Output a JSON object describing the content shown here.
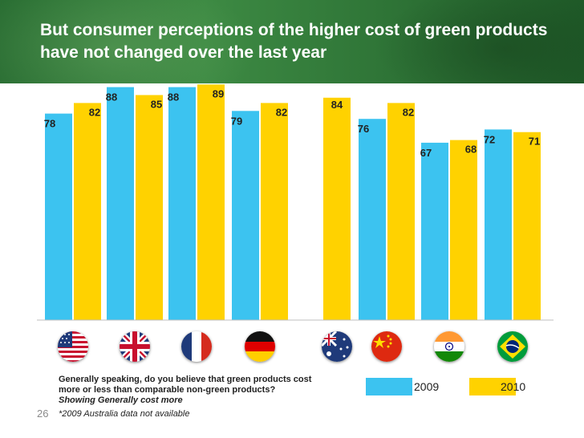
{
  "title": "But consumer perceptions of the higher cost of green products have not changed over the last year",
  "chart_data": {
    "type": "bar",
    "categories": [
      "USA",
      "UK",
      "France",
      "Germany",
      "Australia",
      "China",
      "India",
      "Brazil"
    ],
    "series": [
      {
        "name": "2009",
        "values": [
          78,
          88,
          88,
          79,
          null,
          76,
          67,
          72
        ],
        "color": "#3cc3f0"
      },
      {
        "name": "2010",
        "values": [
          82,
          85,
          89,
          82,
          84,
          82,
          68,
          71
        ],
        "color": "#ffd200"
      }
    ],
    "ylim": [
      0,
      100
    ],
    "legend_position": "bottom-right"
  },
  "legend": {
    "label_2009": "2009",
    "label_2010": "2010"
  },
  "footnote": {
    "question": "Generally speaking, do you believe that green products cost more or less than comparable non-green products?",
    "showing": "Showing Generally cost more",
    "note": "*2009 Australia data not available"
  },
  "page_number": "26",
  "flags": [
    "usa-flag-icon",
    "uk-flag-icon",
    "france-flag-icon",
    "germany-flag-icon",
    "australia-flag-icon",
    "china-flag-icon",
    "india-flag-icon",
    "brazil-flag-icon"
  ],
  "colors": {
    "header_green": "#2f7537",
    "bar_2009": "#3cc3f0",
    "bar_2010": "#ffd200"
  }
}
